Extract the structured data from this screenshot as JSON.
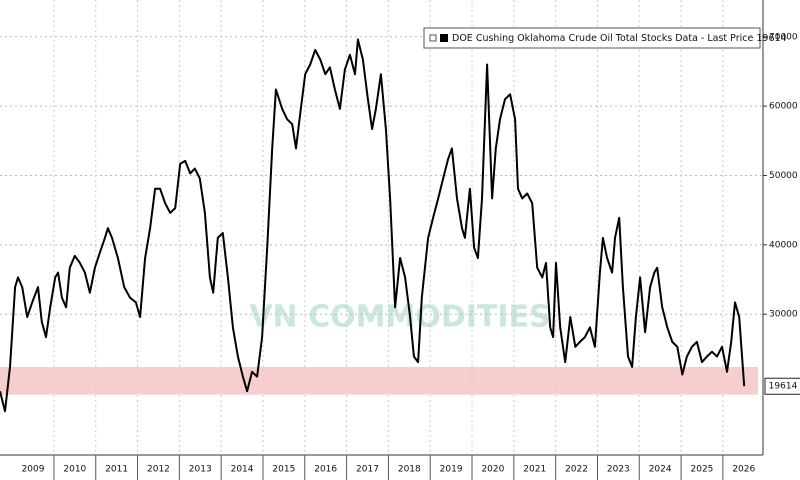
{
  "chart_data": {
    "type": "line",
    "watermark": "VN COMMODITIES",
    "legend": "top-right",
    "grid": true,
    "xlim": [
      2008.71,
      2026.96
    ],
    "ylim": [
      9700,
      75300
    ],
    "yticks": [
      30000,
      40000,
      50000,
      60000,
      70000
    ],
    "xticks": [
      {
        "value": 2009.5,
        "label": "2009"
      },
      {
        "value": 2010.5,
        "label": "2010"
      },
      {
        "value": 2011.5,
        "label": "2011"
      },
      {
        "value": 2012.5,
        "label": "2012"
      },
      {
        "value": 2013.5,
        "label": "2013"
      },
      {
        "value": 2014.5,
        "label": "2014"
      },
      {
        "value": 2015.5,
        "label": "2015"
      },
      {
        "value": 2016.5,
        "label": "2016"
      },
      {
        "value": 2017.5,
        "label": "2017"
      },
      {
        "value": 2018.5,
        "label": "2018"
      },
      {
        "value": 2019.5,
        "label": "2019"
      },
      {
        "value": 2020.5,
        "label": "2020"
      },
      {
        "value": 2021.5,
        "label": "2021"
      },
      {
        "value": 2022.5,
        "label": "2022"
      },
      {
        "value": 2023.5,
        "label": "2023"
      },
      {
        "value": 2024.5,
        "label": "2024"
      },
      {
        "value": 2025.5,
        "label": "2025"
      },
      {
        "value": 2026.5,
        "label": "2026"
      }
    ],
    "band": {
      "range": [
        18400,
        22400
      ],
      "color": "#f4c2c2"
    },
    "series": [
      {
        "name": "DOE Cushing Oklahoma Crude Oil Total Stocks Data - Last Price 19614",
        "color": "#000000",
        "x": [
          2008.71,
          2008.83,
          2008.95,
          2009.07,
          2009.14,
          2009.24,
          2009.36,
          2009.48,
          2009.62,
          2009.71,
          2009.81,
          2009.91,
          2010.03,
          2010.1,
          2010.19,
          2010.29,
          2010.38,
          2010.5,
          2010.62,
          2010.74,
          2010.86,
          2010.98,
          2011.1,
          2011.22,
          2011.29,
          2011.39,
          2011.53,
          2011.68,
          2011.82,
          2011.96,
          2012.06,
          2012.18,
          2012.3,
          2012.42,
          2012.54,
          2012.66,
          2012.78,
          2012.9,
          2013.02,
          2013.14,
          2013.26,
          2013.37,
          2013.49,
          2013.61,
          2013.73,
          2013.81,
          2013.92,
          2014.04,
          2014.16,
          2014.28,
          2014.4,
          2014.52,
          2014.62,
          2014.74,
          2014.86,
          2014.98,
          2015.1,
          2015.22,
          2015.31,
          2015.46,
          2015.58,
          2015.7,
          2015.79,
          2015.89,
          2016.01,
          2016.13,
          2016.25,
          2016.37,
          2016.49,
          2016.6,
          2016.72,
          2016.84,
          2016.96,
          2017.08,
          2017.2,
          2017.27,
          2017.39,
          2017.51,
          2017.61,
          2017.7,
          2017.82,
          2017.94,
          2018.04,
          2018.16,
          2018.28,
          2018.4,
          2018.52,
          2018.61,
          2018.71,
          2018.8,
          2018.95,
          2019.07,
          2019.19,
          2019.31,
          2019.43,
          2019.52,
          2019.64,
          2019.76,
          2019.83,
          2019.95,
          2020.05,
          2020.14,
          2020.24,
          2020.36,
          2020.48,
          2020.57,
          2020.67,
          2020.79,
          2020.91,
          2021.03,
          2021.1,
          2021.2,
          2021.32,
          2021.44,
          2021.56,
          2021.68,
          2021.77,
          2021.87,
          2021.94,
          2022.01,
          2022.11,
          2022.23,
          2022.35,
          2022.47,
          2022.58,
          2022.7,
          2022.82,
          2022.94,
          2023.06,
          2023.13,
          2023.23,
          2023.35,
          2023.42,
          2023.52,
          2023.61,
          2023.73,
          2023.83,
          2023.92,
          2024.02,
          2024.14,
          2024.26,
          2024.36,
          2024.43,
          2024.55,
          2024.67,
          2024.79,
          2024.91,
          2025.03,
          2025.14,
          2025.26,
          2025.38,
          2025.5,
          2025.62,
          2025.74,
          2025.86,
          2025.98,
          2026.1,
          2026.2,
          2026.29,
          2026.39,
          2026.51
        ],
        "values": [
          18900,
          16000,
          22400,
          33900,
          35300,
          33900,
          29600,
          31700,
          33900,
          28900,
          26700,
          31000,
          35300,
          36000,
          32400,
          31000,
          36700,
          38400,
          37400,
          36000,
          33100,
          36700,
          38900,
          41000,
          42400,
          41000,
          38100,
          33900,
          32400,
          31700,
          29600,
          38100,
          42400,
          48100,
          48100,
          46000,
          44600,
          45300,
          51700,
          52100,
          50300,
          51000,
          49600,
          44600,
          35300,
          33100,
          41000,
          41700,
          35300,
          28100,
          23900,
          21000,
          18900,
          21700,
          21000,
          26700,
          39600,
          53900,
          62400,
          59600,
          58100,
          57400,
          53900,
          58900,
          64600,
          66000,
          68100,
          66700,
          64600,
          65600,
          62400,
          59600,
          65300,
          67400,
          64600,
          69600,
          66700,
          61000,
          56700,
          59600,
          64600,
          56700,
          46700,
          31000,
          38100,
          35300,
          29600,
          23900,
          23100,
          32400,
          41000,
          43900,
          46700,
          49600,
          52400,
          53900,
          46700,
          42400,
          41000,
          48100,
          39600,
          38100,
          46700,
          66000,
          46700,
          53900,
          58100,
          61000,
          61700,
          58100,
          48100,
          46700,
          47400,
          46000,
          36700,
          35300,
          37400,
          28100,
          26700,
          37400,
          28100,
          23100,
          29600,
          25300,
          26000,
          26700,
          28100,
          25300,
          36000,
          41000,
          38100,
          36000,
          41000,
          43900,
          33900,
          23900,
          22400,
          29600,
          35300,
          27400,
          33900,
          36000,
          36700,
          31000,
          28100,
          26000,
          25300,
          21300,
          23900,
          25300,
          26000,
          23100,
          23900,
          24600,
          23900,
          25300,
          21700,
          26000,
          31700,
          29600,
          19614
        ]
      }
    ]
  }
}
